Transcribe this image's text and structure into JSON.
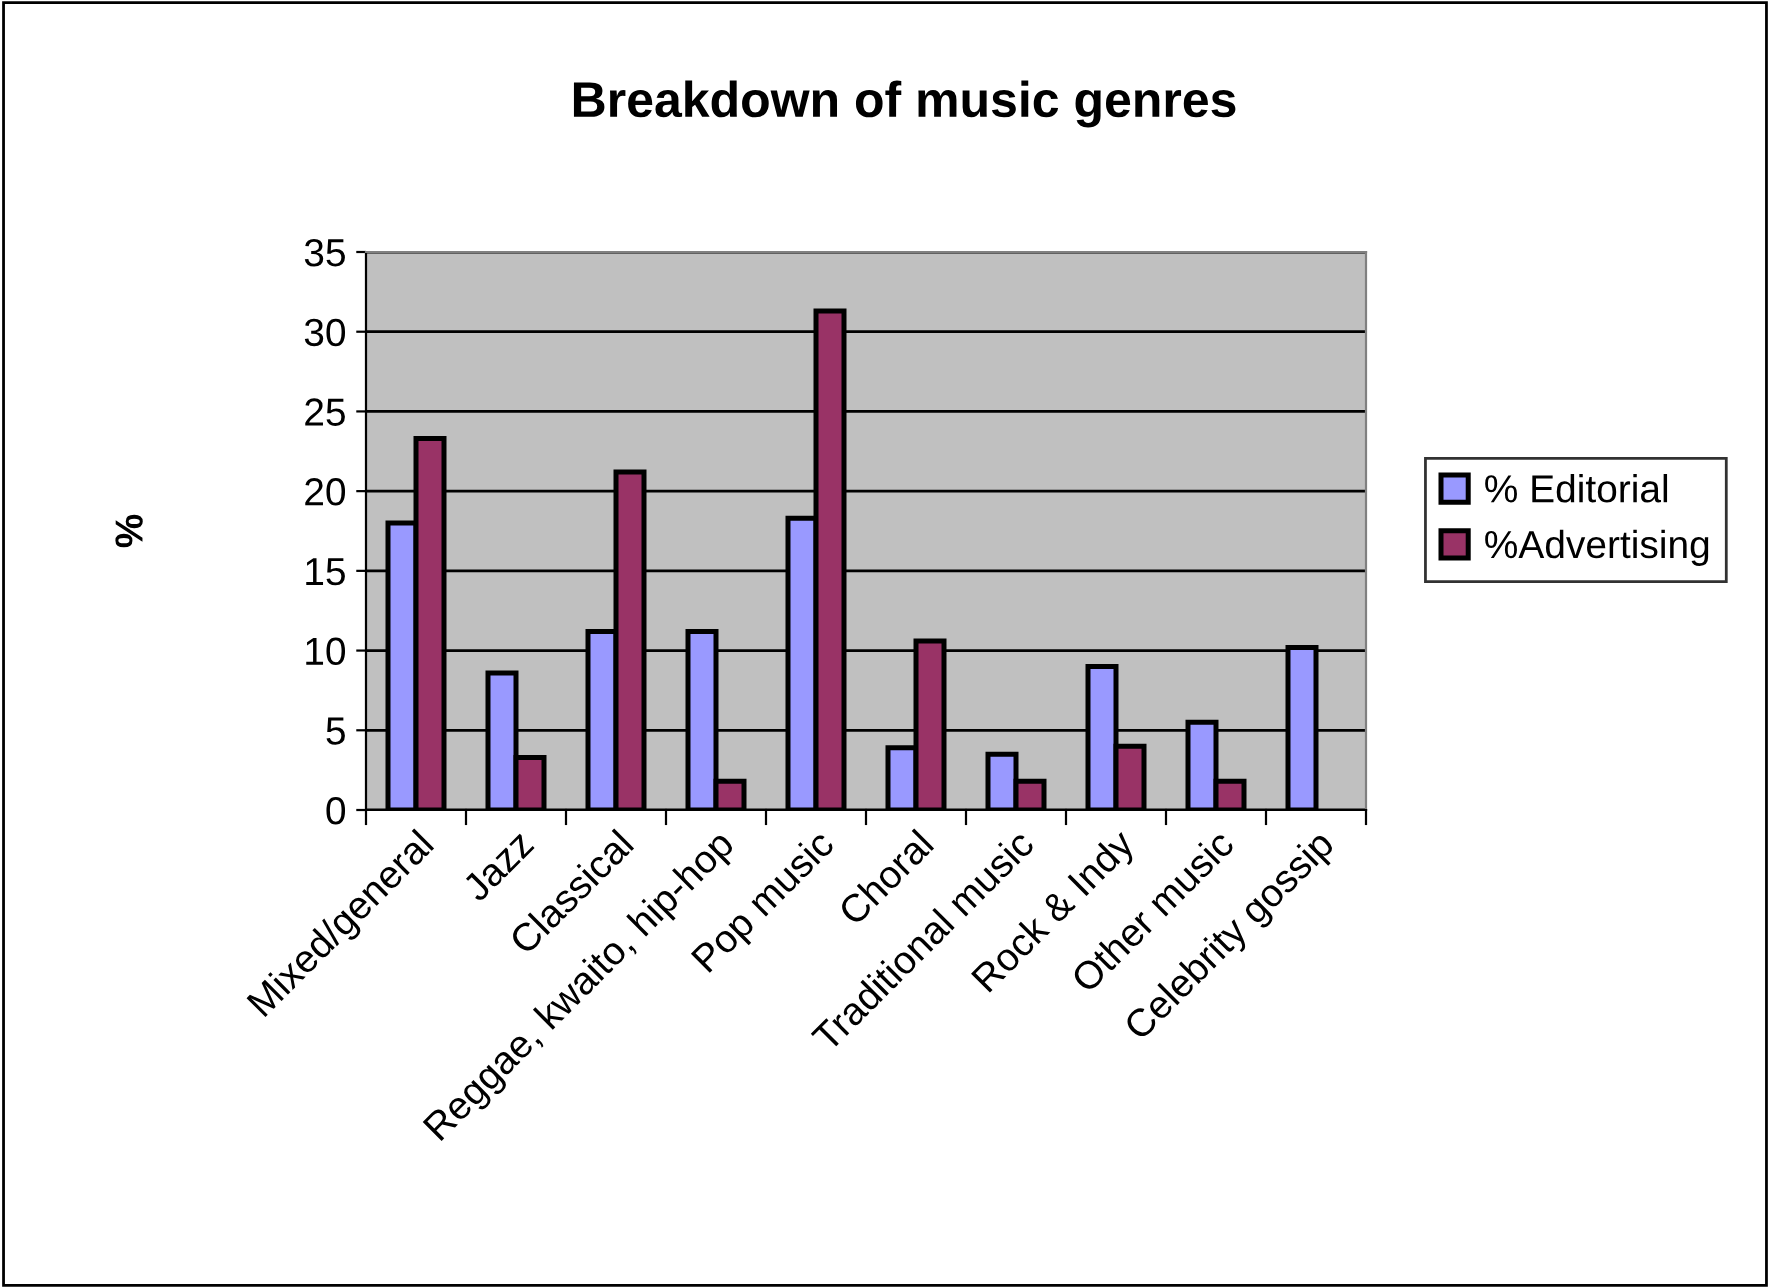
{
  "chart_data": {
    "type": "bar",
    "title": "Breakdown of music genres",
    "ylabel": "%",
    "categories": [
      "Mixed/general",
      "Jazz",
      "Classical",
      "Reggae, kwaito, hip-hop",
      "Pop music",
      "Choral",
      "Traditional music",
      "Rock & Indy",
      "Other music",
      "Celebrity gossip"
    ],
    "series": [
      {
        "name": "% Editorial",
        "color": "#9999ff",
        "values": [
          18,
          8.6,
          11.2,
          11.2,
          18.3,
          3.9,
          3.5,
          9,
          5.5,
          10.2
        ]
      },
      {
        "name": "%Advertising",
        "color": "#993366",
        "values": [
          23.3,
          3.3,
          21.2,
          1.8,
          31.3,
          10.6,
          1.8,
          4,
          1.8,
          null
        ]
      }
    ],
    "ylim": [
      0,
      35
    ],
    "yticks": [
      0,
      5,
      10,
      15,
      20,
      25,
      30,
      35
    ],
    "grid": "y",
    "legend": "right"
  }
}
